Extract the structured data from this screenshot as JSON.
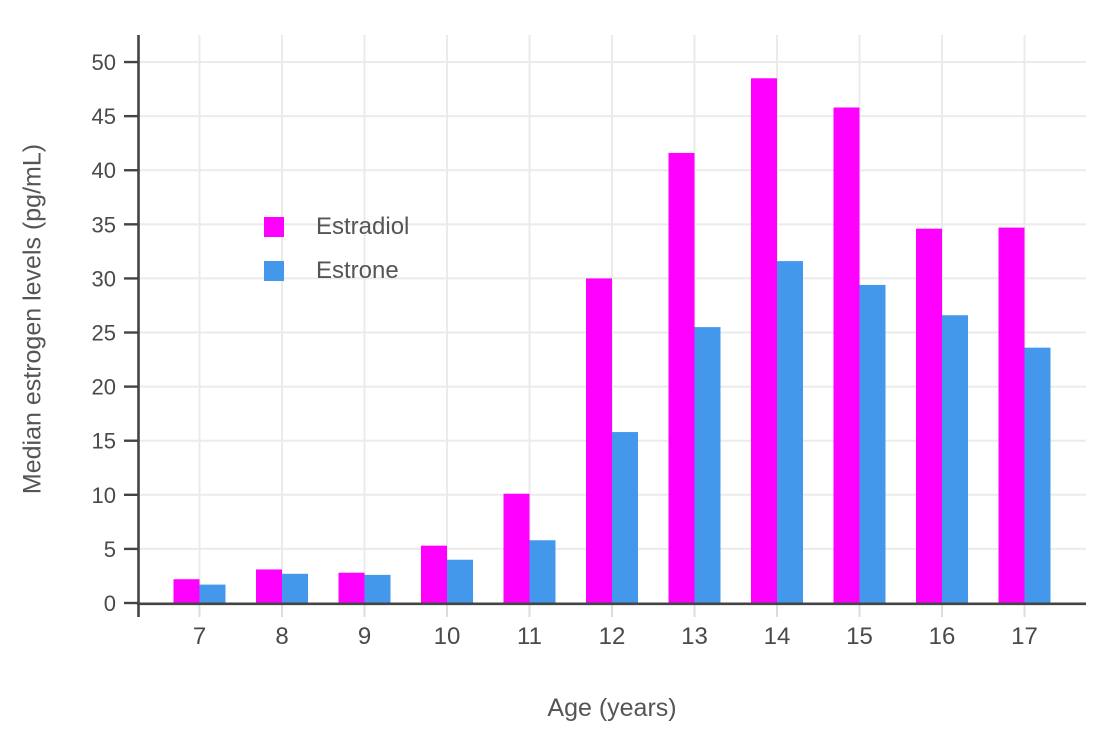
{
  "chart_data": {
    "type": "bar",
    "title": "",
    "xlabel": "Age (years)",
    "ylabel": "Median estrogen levels (pg/mL)",
    "categories": [
      "7",
      "8",
      "9",
      "10",
      "11",
      "12",
      "13",
      "14",
      "15",
      "16",
      "17"
    ],
    "series": [
      {
        "name": "Estradiol",
        "color": "#FF00FF",
        "values": [
          2.2,
          3.1,
          2.8,
          5.3,
          10.1,
          30.0,
          41.6,
          48.5,
          45.8,
          34.6,
          34.7
        ]
      },
      {
        "name": "Estrone",
        "color": "#4398EC",
        "values": [
          1.7,
          2.7,
          2.6,
          4.0,
          5.8,
          15.8,
          25.5,
          31.6,
          29.4,
          26.6,
          23.6
        ]
      }
    ],
    "ylim": [
      0,
      52.5
    ],
    "yticks": [
      0,
      5,
      10,
      15,
      20,
      25,
      30,
      35,
      40,
      45,
      50
    ],
    "grid": true,
    "legend_position": "inside-top-left",
    "colors": {
      "axis_line": "#444444",
      "gridline": "#EBEBEB",
      "x_tick_mark": "#DCDCDC",
      "tick_label": "#4A4A4A"
    }
  }
}
